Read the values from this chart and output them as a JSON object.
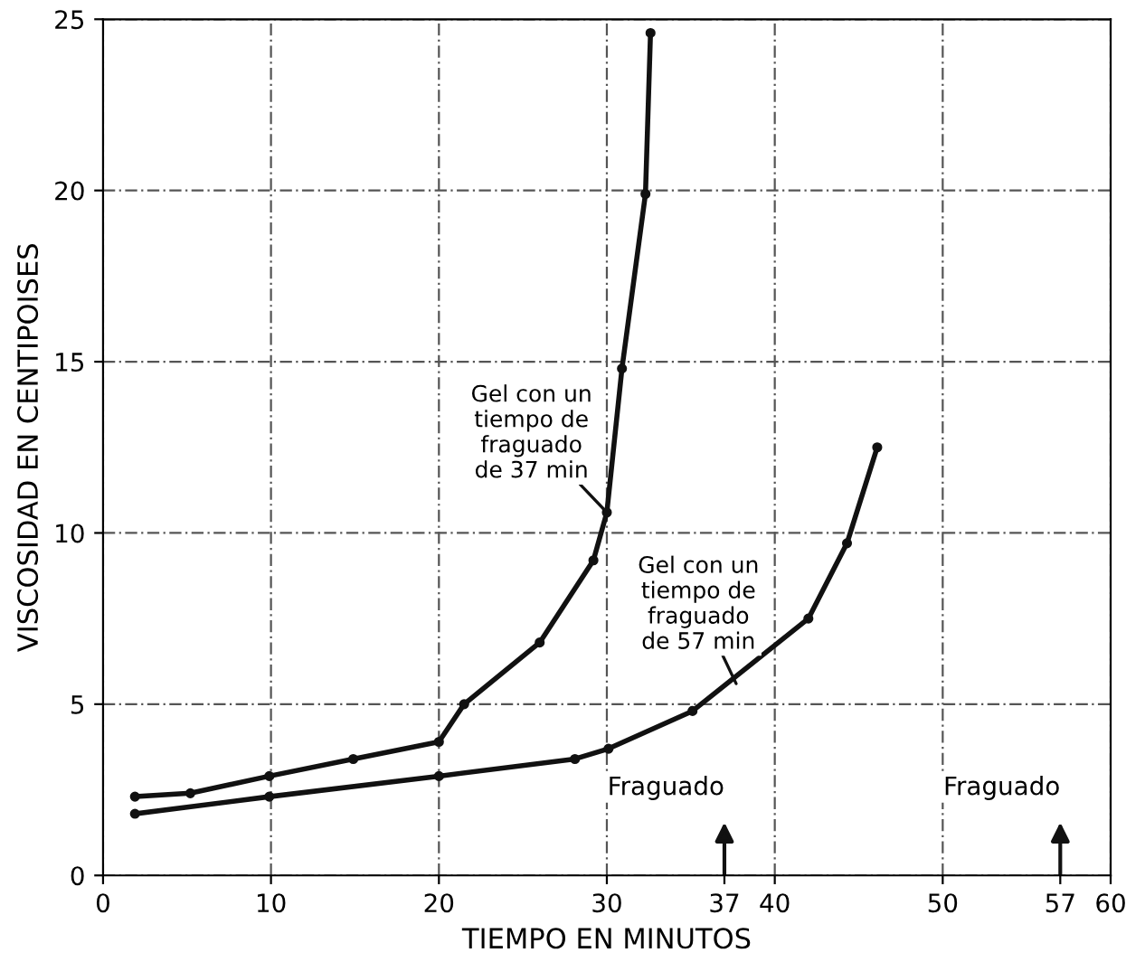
{
  "chart_data": {
    "type": "line",
    "xlabel": "TIEMPO EN MINUTOS",
    "ylabel": "VISCOSIDAD EN CENTIPOISES",
    "series": [
      {
        "color": "#111111",
        "x": [
          1.9,
          5.2,
          9.9,
          14.9,
          20,
          21.5,
          26,
          29.2,
          30,
          30.9,
          32.3,
          32.6
        ],
        "values": [
          2.3,
          2.4,
          2.9,
          3.4,
          3.9,
          5,
          6.8,
          9.2,
          10.6,
          14.8,
          19.9,
          24.6
        ]
      },
      {
        "color": "#111111",
        "x": [
          1.9,
          9.9,
          20,
          28.1,
          30.1,
          35.1,
          42,
          44.3,
          46.1
        ],
        "values": [
          1.8,
          2.3,
          2.9,
          3.4,
          3.7,
          4.8,
          7.5,
          9.7,
          12.5
        ]
      }
    ],
    "annotations": [
      {
        "text": "Gel con un\ntiempo de\nfraguado\nde 37 min",
        "x": 30,
        "y": 10.6
      },
      {
        "text": "Gel con un\ntiempo de\nfraguado\nde 57 min",
        "x": 37.7,
        "y": 5.6
      }
    ],
    "ref_lines": [
      {
        "axis": "x",
        "value": 37,
        "label": "Fraguado"
      },
      {
        "axis": "x",
        "value": 57,
        "label": "Fraguado"
      }
    ],
    "xlim": [
      0,
      60
    ],
    "xticks": [
      0,
      10,
      20,
      30,
      37,
      40,
      50,
      57,
      60
    ],
    "ylim": [
      0,
      25
    ],
    "yticks": [
      0,
      5,
      10,
      15,
      20,
      25
    ],
    "grid": true,
    "marker": "circle",
    "line_style": "solid"
  }
}
